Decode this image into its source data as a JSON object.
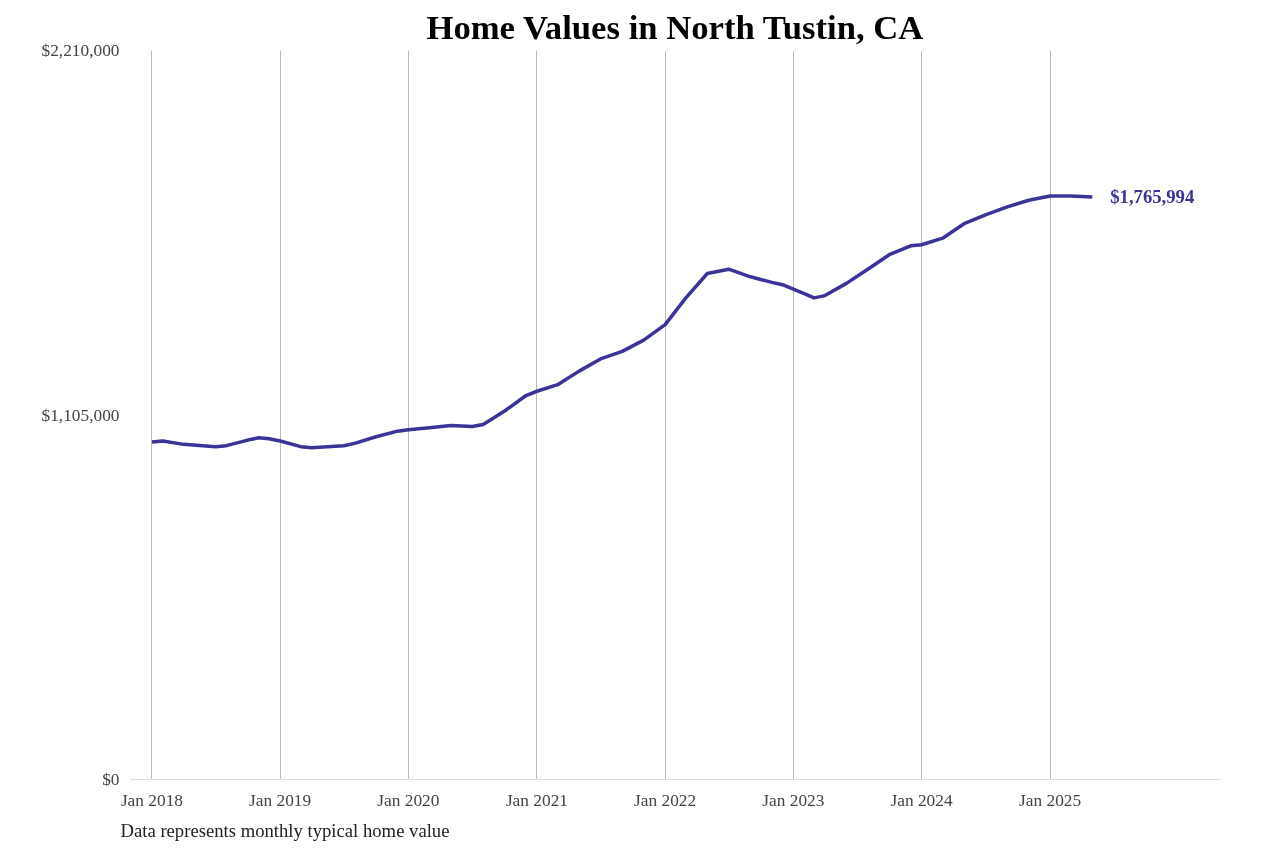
{
  "chart_data": {
    "type": "line",
    "title": "Home Values in North Tustin, CA",
    "x": [
      "2018-01",
      "2018-02",
      "2018-04",
      "2018-07",
      "2018-08",
      "2018-10",
      "2018-11",
      "2018-12",
      "2019-01",
      "2019-03",
      "2019-04",
      "2019-07",
      "2019-08",
      "2019-10",
      "2019-12",
      "2020-01",
      "2020-03",
      "2020-05",
      "2020-07",
      "2020-08",
      "2020-10",
      "2020-12",
      "2021-01",
      "2021-03",
      "2021-05",
      "2021-07",
      "2021-09",
      "2021-11",
      "2022-01",
      "2022-03",
      "2022-05",
      "2022-07",
      "2022-09",
      "2022-11",
      "2022-12",
      "2023-02",
      "2023-03",
      "2023-04",
      "2023-06",
      "2023-08",
      "2023-10",
      "2023-12",
      "2024-01",
      "2024-03",
      "2024-05",
      "2024-07",
      "2024-09",
      "2024-11",
      "2025-01",
      "2025-03",
      "2025-05"
    ],
    "series": [
      {
        "color": "#3a3499",
        "values": [
          1023000,
          1026000,
          1016000,
          1009000,
          1012000,
          1029000,
          1036000,
          1033000,
          1026000,
          1009000,
          1006000,
          1012000,
          1019000,
          1039000,
          1056000,
          1060000,
          1066000,
          1073000,
          1070000,
          1076000,
          1117000,
          1164000,
          1177000,
          1197000,
          1238000,
          1275000,
          1298000,
          1332000,
          1379000,
          1460000,
          1534000,
          1547000,
          1524000,
          1507000,
          1500000,
          1473000,
          1460000,
          1467000,
          1504000,
          1547000,
          1591000,
          1618000,
          1621000,
          1641000,
          1685000,
          1712000,
          1736000,
          1756000,
          1769000,
          1769000,
          1765994
        ]
      }
    ],
    "xlim": [
      "2017-11",
      "2026-05"
    ],
    "xticks": [
      {
        "value": "2018-01",
        "label": "Jan 2018"
      },
      {
        "value": "2019-01",
        "label": "Jan 2019"
      },
      {
        "value": "2020-01",
        "label": "Jan 2020"
      },
      {
        "value": "2021-01",
        "label": "Jan 2021"
      },
      {
        "value": "2022-01",
        "label": "Jan 2022"
      },
      {
        "value": "2023-01",
        "label": "Jan 2023"
      },
      {
        "value": "2024-01",
        "label": "Jan 2024"
      },
      {
        "value": "2025-01",
        "label": "Jan 2025"
      }
    ],
    "ylim": [
      0,
      2210000
    ],
    "yticks": [
      {
        "value": 0,
        "label": "$0"
      },
      {
        "value": 1105000,
        "label": "$1,105,000"
      },
      {
        "value": 2210000,
        "label": "$2,210,000"
      }
    ],
    "grid": "x",
    "marker": "none",
    "line_style": "solid",
    "annotations": [
      {
        "text": "$1,765,994",
        "x": "2025-05",
        "y": 1765994
      },
      "Data represents monthly typical home value"
    ]
  }
}
